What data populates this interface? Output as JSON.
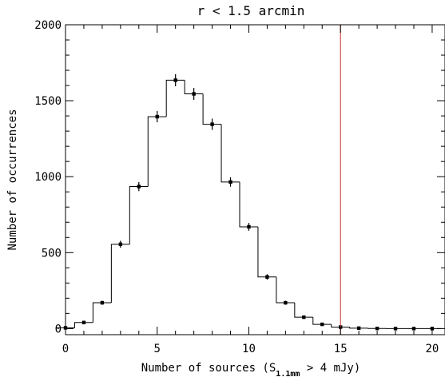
{
  "chart_data": {
    "type": "histogram",
    "title": "r < 1.5 arcmin",
    "xlabel": {
      "prefix": "Number of sources (S",
      "subscript": "1.1mm",
      "suffix": " > 4 mJy)"
    },
    "ylabel": "Number of occurrences",
    "xlim": [
      0,
      20.7
    ],
    "ylim": [
      -40,
      2000
    ],
    "x_ticks": [
      0,
      5,
      10,
      15,
      20
    ],
    "x_tick_labels": [
      "0",
      "5",
      "10",
      "15",
      "20"
    ],
    "y_ticks": [
      0,
      500,
      1000,
      1500,
      2000
    ],
    "y_tick_labels": [
      "0",
      "500",
      "1000",
      "1500",
      "2000"
    ],
    "bin_width": 1,
    "bins": [
      {
        "x": 0,
        "value": 5
      },
      {
        "x": 1,
        "value": 40
      },
      {
        "x": 2,
        "value": 170
      },
      {
        "x": 3,
        "value": 555
      },
      {
        "x": 4,
        "value": 935
      },
      {
        "x": 5,
        "value": 1395
      },
      {
        "x": 6,
        "value": 1635
      },
      {
        "x": 7,
        "value": 1545
      },
      {
        "x": 8,
        "value": 1345
      },
      {
        "x": 9,
        "value": 965
      },
      {
        "x": 10,
        "value": 670
      },
      {
        "x": 11,
        "value": 340
      },
      {
        "x": 12,
        "value": 170
      },
      {
        "x": 13,
        "value": 75
      },
      {
        "x": 14,
        "value": 28
      },
      {
        "x": 15,
        "value": 10
      },
      {
        "x": 16,
        "value": 3
      },
      {
        "x": 17,
        "value": 1
      },
      {
        "x": 18,
        "value": 0
      },
      {
        "x": 19,
        "value": 0
      },
      {
        "x": 20,
        "value": 0
      }
    ],
    "error_bars": [
      5,
      6,
      13,
      23,
      30,
      37,
      40,
      39,
      37,
      31,
      26,
      18,
      13,
      9,
      5,
      3,
      2,
      1,
      1,
      1,
      1
    ],
    "reference_line": {
      "x": 15,
      "color": "#cc2b2b"
    },
    "colors": {
      "histogram": "#000000",
      "points": "#000000",
      "reference": "#cc2b2b"
    }
  }
}
